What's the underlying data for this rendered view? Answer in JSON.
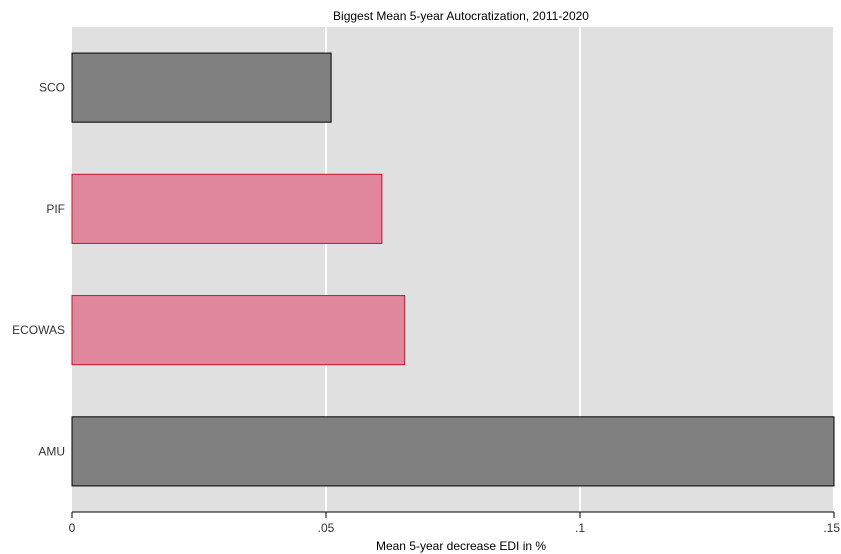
{
  "chart_data": {
    "type": "bar",
    "orientation": "horizontal",
    "title": "Biggest Mean 5-year Autocratization, 2011-2020",
    "xlabel": "Mean 5-year decrease EDI in %",
    "ylabel": "",
    "categories": [
      "SCO",
      "PIF",
      "ECOWAS",
      "AMU"
    ],
    "values": [
      0.051,
      0.061,
      0.0655,
      0.15
    ],
    "bar_colors": [
      "#808080",
      "#e1879d",
      "#e1879d",
      "#808080"
    ],
    "bar_edge_colors": [
      "#000000",
      "#c8102e",
      "#c8102e",
      "#000000"
    ],
    "xlim": [
      0,
      0.15
    ],
    "xticks": [
      0,
      0.05,
      0.1,
      0.15
    ],
    "xtick_labels": [
      "0",
      ".05",
      ".1",
      ".15"
    ],
    "grid": true,
    "grid_axis": "x",
    "plot_background": "#e0e0e0",
    "grid_color": "#ffffff"
  }
}
